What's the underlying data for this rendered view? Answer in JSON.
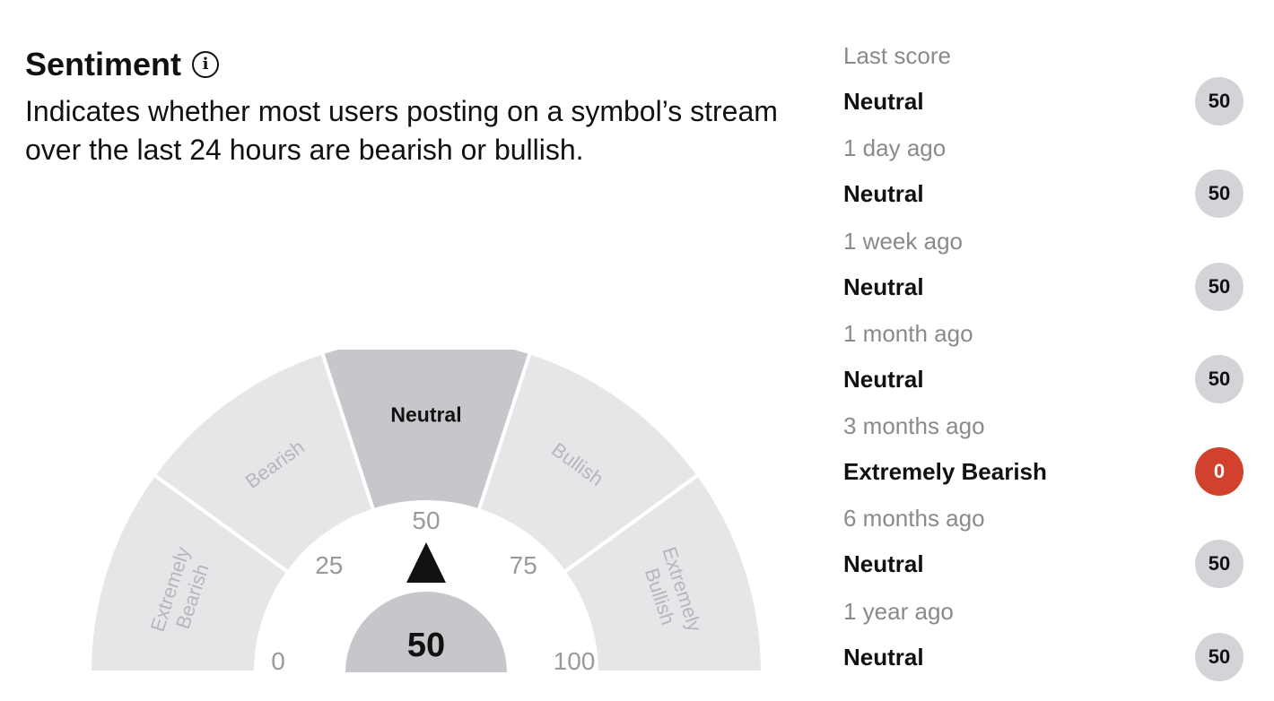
{
  "header": {
    "title": "Sentiment",
    "info_icon": "info-icon",
    "description": "Indicates whether most users posting on a symbol’s stream over the last 24 hours are bearish or bullish."
  },
  "gauge": {
    "value": 50,
    "value_label": "50",
    "active_zone": "Neutral",
    "zones": [
      {
        "label_lines": [
          "Extremely",
          "Bearish"
        ],
        "range": [
          0,
          20
        ]
      },
      {
        "label_lines": [
          "Bearish"
        ],
        "range": [
          20,
          40
        ]
      },
      {
        "label_lines": [
          "Neutral"
        ],
        "range": [
          40,
          60
        ]
      },
      {
        "label_lines": [
          "Bullish"
        ],
        "range": [
          60,
          80
        ]
      },
      {
        "label_lines": [
          "Extremely",
          "Bullish"
        ],
        "range": [
          80,
          100
        ]
      }
    ],
    "ticks": [
      "0",
      "25",
      "50",
      "75",
      "100"
    ],
    "colors": {
      "zone": "#e6e6e9",
      "active_zone": "#c7c7cb",
      "zone_text": "#b7b7bb",
      "active_text": "#111111",
      "tick_text": "#9a9a9e",
      "hub": "#c7c7cb",
      "needle": "#111111"
    }
  },
  "history": [
    {
      "when": "Last score",
      "label": "Neutral",
      "score": "50",
      "color": "#d4d4d8",
      "text_color": "#111111"
    },
    {
      "when": "1 day ago",
      "label": "Neutral",
      "score": "50",
      "color": "#d4d4d8",
      "text_color": "#111111"
    },
    {
      "when": "1 week ago",
      "label": "Neutral",
      "score": "50",
      "color": "#d4d4d8",
      "text_color": "#111111"
    },
    {
      "when": "1 month ago",
      "label": "Neutral",
      "score": "50",
      "color": "#d4d4d8",
      "text_color": "#111111"
    },
    {
      "when": "3 months ago",
      "label": "Extremely Bearish",
      "score": "0",
      "color": "#d2412d",
      "text_color": "#ffffff"
    },
    {
      "when": "6 months ago",
      "label": "Neutral",
      "score": "50",
      "color": "#d4d4d8",
      "text_color": "#111111"
    },
    {
      "when": "1 year ago",
      "label": "Neutral",
      "score": "50",
      "color": "#d4d4d8",
      "text_color": "#111111"
    }
  ]
}
